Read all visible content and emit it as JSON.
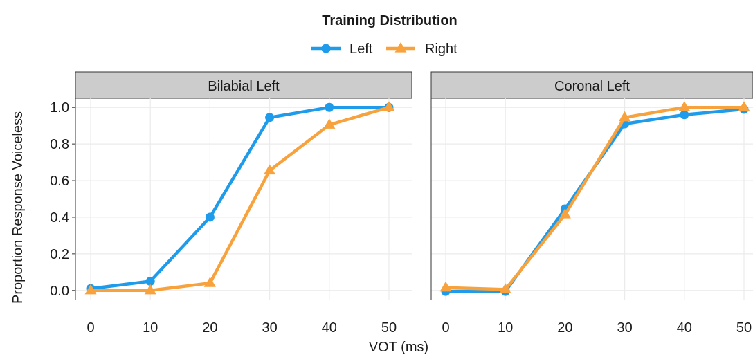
{
  "chart_data": {
    "type": "line",
    "legend": {
      "title": "Training Distribution",
      "placement": "top"
    },
    "xlabel": "VOT (ms)",
    "ylabel": "Proportion Response Voiceless",
    "x": [
      0,
      10,
      20,
      30,
      40,
      50
    ],
    "xlim": [
      -2.5,
      52.5
    ],
    "ylim": [
      -0.05,
      1.05
    ],
    "yticks": [
      0.0,
      0.2,
      0.4,
      0.6,
      0.8,
      1.0
    ],
    "ytick_labels": [
      "0.0",
      "0.2",
      "0.4",
      "0.6",
      "0.8",
      "1.0"
    ],
    "xtick_labels": [
      "0",
      "10",
      "20",
      "30",
      "40",
      "50"
    ],
    "grid": true,
    "series_styles": [
      {
        "name": "Left",
        "color": "#1E9BEB",
        "marker": "circle"
      },
      {
        "name": "Right",
        "color": "#F7A23C",
        "marker": "triangle"
      }
    ],
    "panels": [
      {
        "title": "Bilabial Left",
        "series": [
          {
            "name": "Left",
            "values": [
              0.01,
              0.05,
              0.4,
              0.945,
              1.0,
              1.0
            ]
          },
          {
            "name": "Right",
            "values": [
              0.0,
              0.0,
              0.04,
              0.655,
              0.905,
              1.0
            ]
          }
        ]
      },
      {
        "title": "Coronal Left",
        "series": [
          {
            "name": "Left",
            "values": [
              -0.005,
              -0.005,
              0.445,
              0.91,
              0.96,
              0.99
            ]
          },
          {
            "name": "Right",
            "values": [
              0.015,
              0.005,
              0.415,
              0.945,
              1.0,
              1.0
            ]
          }
        ]
      }
    ]
  }
}
